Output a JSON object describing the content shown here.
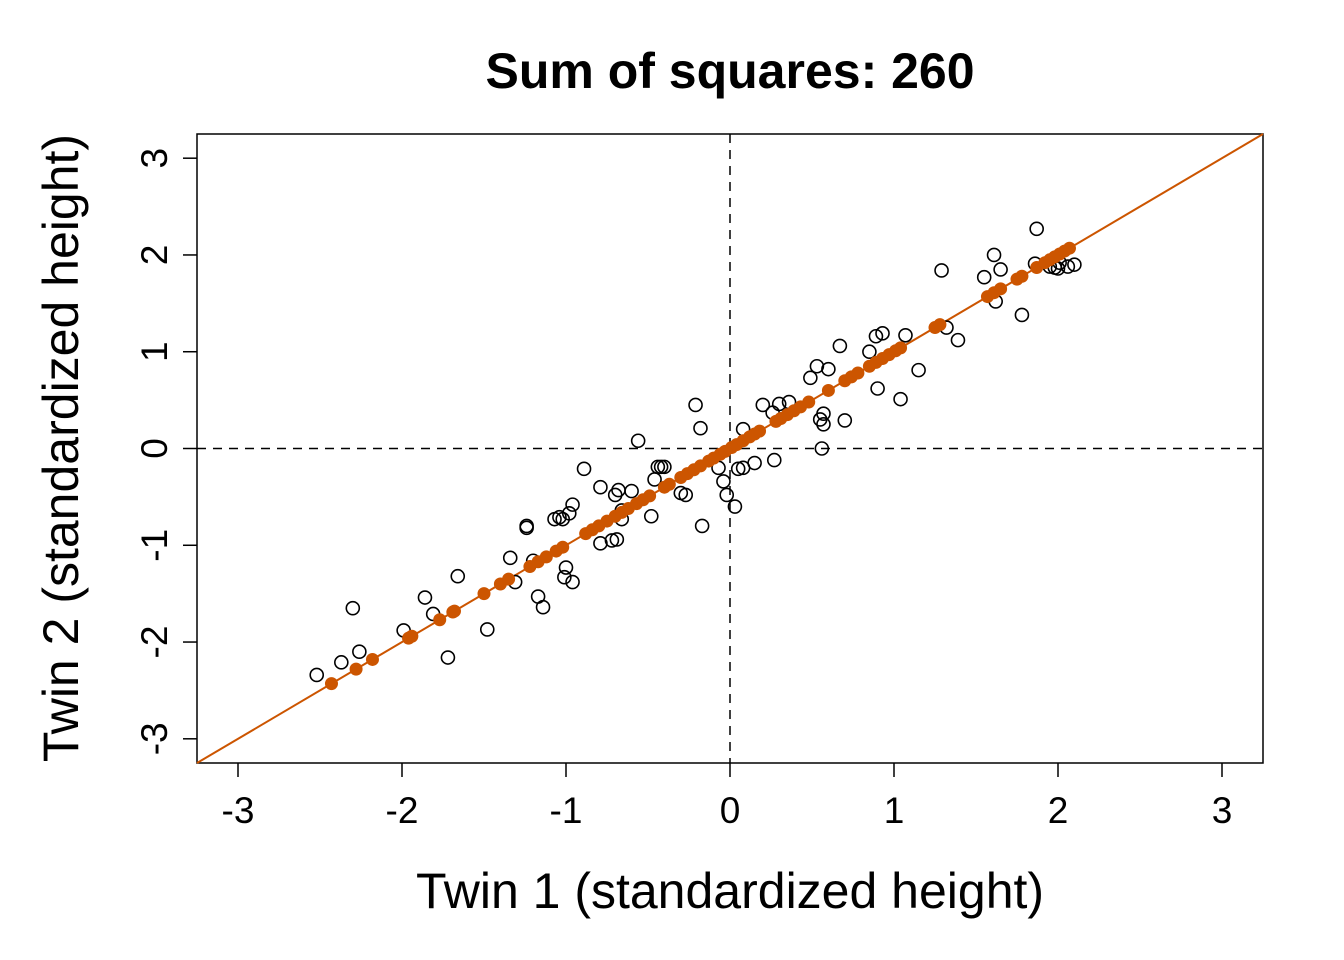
{
  "chart_data": {
    "type": "scatter",
    "title": "Sum of squares: 260",
    "xlabel": "Twin 1 (standardized height)",
    "ylabel": "Twin 2 (standardized height)",
    "xlim": [
      -3.25,
      3.25
    ],
    "ylim": [
      -3.25,
      3.25
    ],
    "xticks": [
      "-3",
      "-2",
      "-1",
      "0",
      "1",
      "2",
      "3"
    ],
    "yticks": [
      "-3",
      "-2",
      "-1",
      "0",
      "1",
      "2",
      "3"
    ],
    "reference_lines": {
      "vertical_x": 0,
      "horizontal_y": 0,
      "style": "dashed"
    },
    "fit_line": {
      "slope": 1,
      "intercept": 0,
      "color": "#cc5500"
    },
    "colors": {
      "observed": "#000000",
      "projected": "#cc5500"
    },
    "series": [
      {
        "name": "",
        "marker": "open-circle",
        "points": [
          [
            -2.52,
            -2.34
          ],
          [
            -2.37,
            -2.21
          ],
          [
            -2.3,
            -1.65
          ],
          [
            -2.26,
            -2.1
          ],
          [
            -1.99,
            -1.88
          ],
          [
            -1.86,
            -1.54
          ],
          [
            -1.81,
            -1.71
          ],
          [
            -1.72,
            -2.16
          ],
          [
            -1.66,
            -1.32
          ],
          [
            -1.48,
            -1.87
          ],
          [
            -1.34,
            -1.13
          ],
          [
            -1.31,
            -1.38
          ],
          [
            -1.24,
            -0.8
          ],
          [
            -1.24,
            -0.82
          ],
          [
            -1.2,
            -1.16
          ],
          [
            -1.17,
            -1.53
          ],
          [
            -1.14,
            -1.64
          ],
          [
            -1.07,
            -0.73
          ],
          [
            -1.04,
            -0.71
          ],
          [
            -1.02,
            -0.73
          ],
          [
            -1.01,
            -1.33
          ],
          [
            -1.0,
            -1.23
          ],
          [
            -0.98,
            -0.67
          ],
          [
            -0.96,
            -0.58
          ],
          [
            -0.96,
            -1.38
          ],
          [
            -0.89,
            -0.21
          ],
          [
            -0.79,
            -0.4
          ],
          [
            -0.79,
            -0.98
          ],
          [
            -0.72,
            -0.95
          ],
          [
            -0.7,
            -0.48
          ],
          [
            -0.69,
            -0.94
          ],
          [
            -0.68,
            -0.43
          ],
          [
            -0.66,
            -0.64
          ],
          [
            -0.66,
            -0.73
          ],
          [
            -0.6,
            -0.44
          ],
          [
            -0.56,
            0.08
          ],
          [
            -0.48,
            -0.7
          ],
          [
            -0.46,
            -0.32
          ],
          [
            -0.44,
            -0.19
          ],
          [
            -0.42,
            -0.19
          ],
          [
            -0.4,
            -0.19
          ],
          [
            -0.3,
            -0.46
          ],
          [
            -0.27,
            -0.48
          ],
          [
            -0.21,
            0.45
          ],
          [
            -0.18,
            0.21
          ],
          [
            -0.17,
            -0.8
          ],
          [
            -0.07,
            -0.2
          ],
          [
            -0.04,
            -0.34
          ],
          [
            -0.02,
            -0.48
          ],
          [
            0.03,
            -0.6
          ],
          [
            0.05,
            -0.21
          ],
          [
            0.08,
            -0.2
          ],
          [
            0.08,
            0.2
          ],
          [
            0.15,
            -0.15
          ],
          [
            0.2,
            0.45
          ],
          [
            0.26,
            0.37
          ],
          [
            0.27,
            -0.12
          ],
          [
            0.3,
            0.46
          ],
          [
            0.36,
            0.48
          ],
          [
            0.49,
            0.73
          ],
          [
            0.53,
            0.85
          ],
          [
            0.55,
            0.3
          ],
          [
            0.56,
            0.0
          ],
          [
            0.57,
            0.25
          ],
          [
            0.57,
            0.36
          ],
          [
            0.6,
            0.82
          ],
          [
            0.67,
            1.06
          ],
          [
            0.7,
            0.29
          ],
          [
            0.85,
            1.0
          ],
          [
            0.89,
            1.16
          ],
          [
            0.9,
            0.62
          ],
          [
            0.93,
            1.19
          ],
          [
            1.04,
            0.51
          ],
          [
            1.07,
            1.17
          ],
          [
            1.15,
            0.81
          ],
          [
            1.29,
            1.84
          ],
          [
            1.32,
            1.25
          ],
          [
            1.39,
            1.12
          ],
          [
            1.55,
            1.77
          ],
          [
            1.61,
            2.0
          ],
          [
            1.62,
            1.52
          ],
          [
            1.65,
            1.85
          ],
          [
            1.78,
            1.38
          ],
          [
            1.86,
            1.91
          ],
          [
            1.87,
            2.27
          ],
          [
            1.95,
            1.88
          ],
          [
            1.98,
            1.87
          ],
          [
            2.0,
            1.86
          ],
          [
            2.01,
            1.92
          ],
          [
            2.06,
            1.88
          ],
          [
            2.1,
            1.9
          ]
        ]
      },
      {
        "name": "",
        "marker": "filled-dot",
        "color": "#cc5500",
        "points": [
          [
            -2.43,
            -2.43
          ],
          [
            -2.28,
            -2.28
          ],
          [
            -2.18,
            -2.18
          ],
          [
            -1.96,
            -1.96
          ],
          [
            -1.94,
            -1.94
          ],
          [
            -1.77,
            -1.77
          ],
          [
            -1.69,
            -1.69
          ],
          [
            -1.68,
            -1.68
          ],
          [
            -1.5,
            -1.5
          ],
          [
            -1.4,
            -1.4
          ],
          [
            -1.35,
            -1.35
          ],
          [
            -1.22,
            -1.22
          ],
          [
            -1.17,
            -1.17
          ],
          [
            -1.12,
            -1.12
          ],
          [
            -1.06,
            -1.06
          ],
          [
            -1.02,
            -1.02
          ],
          [
            -0.88,
            -0.88
          ],
          [
            -0.84,
            -0.84
          ],
          [
            -0.8,
            -0.8
          ],
          [
            -0.75,
            -0.75
          ],
          [
            -0.7,
            -0.7
          ],
          [
            -0.66,
            -0.66
          ],
          [
            -0.62,
            -0.62
          ],
          [
            -0.57,
            -0.57
          ],
          [
            -0.53,
            -0.53
          ],
          [
            -0.49,
            -0.49
          ],
          [
            -0.4,
            -0.4
          ],
          [
            -0.37,
            -0.37
          ],
          [
            -0.3,
            -0.3
          ],
          [
            -0.26,
            -0.26
          ],
          [
            -0.22,
            -0.22
          ],
          [
            -0.18,
            -0.18
          ],
          [
            -0.13,
            -0.13
          ],
          [
            -0.1,
            -0.1
          ],
          [
            -0.06,
            -0.06
          ],
          [
            -0.03,
            -0.03
          ],
          [
            0.01,
            0.01
          ],
          [
            0.04,
            0.04
          ],
          [
            0.08,
            0.08
          ],
          [
            0.12,
            0.12
          ],
          [
            0.15,
            0.15
          ],
          [
            0.18,
            0.18
          ],
          [
            0.28,
            0.28
          ],
          [
            0.31,
            0.31
          ],
          [
            0.35,
            0.35
          ],
          [
            0.39,
            0.39
          ],
          [
            0.43,
            0.43
          ],
          [
            0.48,
            0.48
          ],
          [
            0.6,
            0.6
          ],
          [
            0.7,
            0.7
          ],
          [
            0.74,
            0.74
          ],
          [
            0.78,
            0.78
          ],
          [
            0.85,
            0.85
          ],
          [
            0.89,
            0.89
          ],
          [
            0.93,
            0.93
          ],
          [
            0.97,
            0.97
          ],
          [
            1.01,
            1.01
          ],
          [
            1.04,
            1.04
          ],
          [
            1.25,
            1.25
          ],
          [
            1.28,
            1.28
          ],
          [
            1.57,
            1.57
          ],
          [
            1.61,
            1.61
          ],
          [
            1.65,
            1.65
          ],
          [
            1.75,
            1.75
          ],
          [
            1.78,
            1.78
          ],
          [
            1.87,
            1.87
          ],
          [
            1.92,
            1.92
          ],
          [
            1.95,
            1.95
          ],
          [
            1.98,
            1.98
          ],
          [
            2.01,
            2.01
          ],
          [
            2.04,
            2.04
          ],
          [
            2.07,
            2.07
          ]
        ]
      }
    ]
  }
}
